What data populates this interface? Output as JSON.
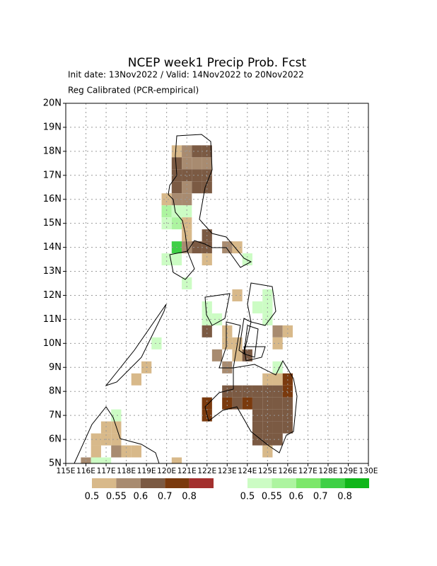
{
  "title": "NCEP week1 Precip Prob. Fcst",
  "subtitle": "Init date: 13Nov2022 / Valid: 14Nov2022 to 20Nov2022",
  "note": "Reg Calibrated (PCR-empirical)",
  "xlim": [
    115,
    130
  ],
  "ylim": [
    5,
    20
  ],
  "xticks": [
    {
      "value": 115,
      "label": "115E"
    },
    {
      "value": 116,
      "label": "116E"
    },
    {
      "value": 117,
      "label": "117E"
    },
    {
      "value": 118,
      "label": "118E"
    },
    {
      "value": 119,
      "label": "119E"
    },
    {
      "value": 120,
      "label": "120E"
    },
    {
      "value": 121,
      "label": "121E"
    },
    {
      "value": 122,
      "label": "122E"
    },
    {
      "value": 123,
      "label": "123E"
    },
    {
      "value": 124,
      "label": "124E"
    },
    {
      "value": 125,
      "label": "125E"
    },
    {
      "value": 126,
      "label": "126E"
    },
    {
      "value": 127,
      "label": "127E"
    },
    {
      "value": 128,
      "label": "128E"
    },
    {
      "value": 129,
      "label": "129E"
    },
    {
      "value": 130,
      "label": "130E"
    }
  ],
  "yticks": [
    {
      "value": 5,
      "label": "5N"
    },
    {
      "value": 6,
      "label": "6N"
    },
    {
      "value": 7,
      "label": "7N"
    },
    {
      "value": 8,
      "label": "8N"
    },
    {
      "value": 9,
      "label": "9N"
    },
    {
      "value": 10,
      "label": "10N"
    },
    {
      "value": 11,
      "label": "11N"
    },
    {
      "value": 12,
      "label": "12N"
    },
    {
      "value": 13,
      "label": "13N"
    },
    {
      "value": 14,
      "label": "14N"
    },
    {
      "value": 15,
      "label": "15N"
    },
    {
      "value": 16,
      "label": "16N"
    },
    {
      "value": 17,
      "label": "17N"
    },
    {
      "value": 18,
      "label": "18N"
    },
    {
      "value": 19,
      "label": "19N"
    },
    {
      "value": 20,
      "label": "20N"
    }
  ],
  "grid": true,
  "cell_size": 0.5,
  "legends": [
    {
      "colors": [
        "#d8b98a",
        "#a88b70",
        "#7b5a43",
        "#7a3a0e",
        "#a3302e"
      ],
      "labels": [
        0.5,
        0.55,
        0.6,
        0.7,
        0.8
      ]
    },
    {
      "colors": [
        "#ccfcc4",
        "#adf4a0",
        "#7ce76a",
        "#3fd046",
        "#10b61a"
      ],
      "labels": [
        0.5,
        0.55,
        0.6,
        0.7,
        0.8
      ]
    }
  ],
  "cells": [
    [
      120.5,
      18,
      0,
      0
    ],
    [
      121,
      18,
      0,
      1
    ],
    [
      121.5,
      18,
      0,
      2
    ],
    [
      122,
      18,
      0,
      2
    ],
    [
      120.5,
      17.5,
      0,
      2
    ],
    [
      121,
      17.5,
      0,
      1
    ],
    [
      121.5,
      17.5,
      0,
      1
    ],
    [
      122,
      17.5,
      0,
      1
    ],
    [
      120.5,
      17,
      0,
      2
    ],
    [
      121,
      17,
      0,
      2
    ],
    [
      121.5,
      17,
      0,
      2
    ],
    [
      122,
      17,
      0,
      2
    ],
    [
      120.5,
      16.5,
      0,
      2
    ],
    [
      121,
      16.5,
      0,
      1
    ],
    [
      121.5,
      16.5,
      0,
      2
    ],
    [
      122,
      16.5,
      0,
      2
    ],
    [
      120,
      16,
      0,
      0
    ],
    [
      120.5,
      16,
      0,
      1
    ],
    [
      121,
      16,
      0,
      1
    ],
    [
      120,
      15.5,
      1,
      1
    ],
    [
      120.5,
      15.5,
      1,
      0
    ],
    [
      121,
      15.5,
      1,
      0
    ],
    [
      120,
      15,
      1,
      0
    ],
    [
      120.5,
      15,
      1,
      1
    ],
    [
      121,
      15,
      0,
      0
    ],
    [
      121,
      14.5,
      0,
      0
    ],
    [
      122,
      14.5,
      0,
      2
    ],
    [
      120.5,
      14,
      1,
      3
    ],
    [
      121,
      14,
      0,
      1
    ],
    [
      121.5,
      14,
      0,
      2
    ],
    [
      122,
      14,
      0,
      2
    ],
    [
      123,
      14,
      0,
      1
    ],
    [
      123.5,
      14,
      0,
      0
    ],
    [
      120,
      13.5,
      1,
      0
    ],
    [
      120.5,
      13.5,
      1,
      0
    ],
    [
      122,
      13.5,
      0,
      0
    ],
    [
      124,
      13.5,
      1,
      0
    ],
    [
      121,
      12.5,
      1,
      0
    ],
    [
      123.5,
      12,
      0,
      0
    ],
    [
      125,
      12,
      1,
      0
    ],
    [
      122,
      11.5,
      1,
      0
    ],
    [
      124.5,
      11.5,
      1,
      0
    ],
    [
      125,
      11.5,
      1,
      0
    ],
    [
      122,
      11,
      1,
      0
    ],
    [
      122.5,
      11,
      1,
      0
    ],
    [
      125,
      11,
      1,
      0
    ],
    [
      122,
      10.5,
      0,
      2
    ],
    [
      123,
      10.5,
      0,
      0
    ],
    [
      125.5,
      10.5,
      0,
      1
    ],
    [
      126,
      10.5,
      0,
      0
    ],
    [
      123,
      10,
      0,
      0
    ],
    [
      123.5,
      10,
      0,
      0
    ],
    [
      125.5,
      10,
      0,
      0
    ],
    [
      122.5,
      9.5,
      0,
      1
    ],
    [
      123.5,
      9.5,
      0,
      0
    ],
    [
      124,
      9.5,
      0,
      2
    ],
    [
      123,
      9,
      0,
      1
    ],
    [
      125.5,
      9,
      1,
      0
    ],
    [
      125,
      8.5,
      0,
      0
    ],
    [
      125.5,
      8.5,
      0,
      0
    ],
    [
      126,
      8.5,
      0,
      3
    ],
    [
      123,
      8,
      0,
      2
    ],
    [
      123.5,
      8,
      0,
      2
    ],
    [
      124,
      8,
      0,
      2
    ],
    [
      124.5,
      8,
      0,
      2
    ],
    [
      125,
      8,
      0,
      2
    ],
    [
      125.5,
      8,
      0,
      2
    ],
    [
      126,
      8,
      0,
      3
    ],
    [
      122,
      7.5,
      0,
      3
    ],
    [
      123,
      7.5,
      0,
      3
    ],
    [
      123.5,
      7.5,
      0,
      2
    ],
    [
      124,
      7.5,
      0,
      3
    ],
    [
      124.5,
      7.5,
      0,
      2
    ],
    [
      125,
      7.5,
      0,
      2
    ],
    [
      125.5,
      7.5,
      0,
      2
    ],
    [
      126,
      7.5,
      0,
      2
    ],
    [
      122,
      7,
      0,
      3
    ],
    [
      124.5,
      7,
      0,
      2
    ],
    [
      125,
      7,
      0,
      2
    ],
    [
      125.5,
      7,
      0,
      2
    ],
    [
      126,
      7,
      0,
      2
    ],
    [
      124.5,
      6.5,
      0,
      2
    ],
    [
      125,
      6.5,
      0,
      2
    ],
    [
      125.5,
      6.5,
      0,
      2
    ],
    [
      126,
      6.5,
      0,
      2
    ],
    [
      124.5,
      6,
      0,
      2
    ],
    [
      125,
      6,
      0,
      2
    ],
    [
      125.5,
      6,
      0,
      2
    ],
    [
      125,
      5.5,
      0,
      0
    ],
    [
      117.5,
      7,
      1,
      0
    ],
    [
      117,
      6.5,
      0,
      0
    ],
    [
      117.5,
      6.5,
      0,
      0
    ],
    [
      116.5,
      6,
      0,
      0
    ],
    [
      117,
      6,
      0,
      0
    ],
    [
      117.5,
      6,
      0,
      0
    ],
    [
      116.5,
      5.5,
      0,
      0
    ],
    [
      117.5,
      5.5,
      0,
      1
    ],
    [
      118,
      5.5,
      0,
      0
    ],
    [
      118.5,
      5.5,
      0,
      0
    ],
    [
      116,
      5,
      0,
      1
    ],
    [
      116.5,
      5,
      1,
      0
    ],
    [
      117,
      5,
      1,
      0
    ],
    [
      119,
      9,
      0,
      0
    ],
    [
      118.5,
      8.5,
      0,
      0
    ],
    [
      119.5,
      10,
      1,
      0
    ],
    [
      120.5,
      5,
      0,
      0
    ]
  ]
}
